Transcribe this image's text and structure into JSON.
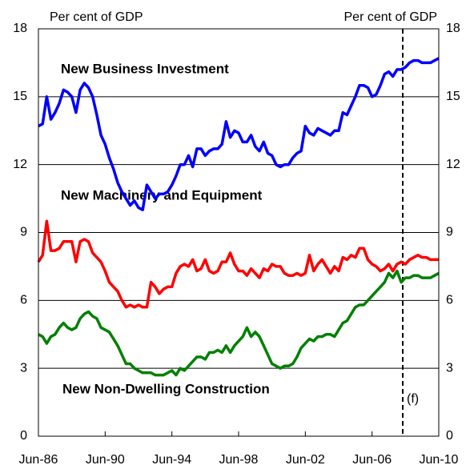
{
  "chart_data": {
    "type": "line",
    "y_label": "Per cent of GDP",
    "y2_label": "Per cent of GDP",
    "annotations": [
      "(f)"
    ],
    "categories": [
      "Jun-86",
      null,
      null,
      null,
      null,
      null,
      null,
      null,
      null,
      null,
      null,
      null,
      null,
      null,
      null,
      null,
      "Jun-90",
      null,
      null,
      null,
      null,
      null,
      null,
      null,
      null,
      null,
      null,
      null,
      null,
      null,
      null,
      null,
      "Jun-94",
      null,
      null,
      null,
      null,
      null,
      null,
      null,
      null,
      null,
      null,
      null,
      null,
      null,
      null,
      null,
      "Jun-98",
      null,
      null,
      null,
      null,
      null,
      null,
      null,
      null,
      null,
      null,
      null,
      null,
      null,
      null,
      null,
      "Jun-02",
      null,
      null,
      null,
      null,
      null,
      null,
      null,
      null,
      null,
      null,
      null,
      null,
      null,
      null,
      null,
      "Jun-06",
      null,
      null,
      null,
      null,
      null,
      null,
      null,
      null,
      null,
      null,
      null,
      null,
      null,
      null,
      null,
      "Jun-10"
    ],
    "series": [
      {
        "name": "New Business Investment",
        "color": "#0000ff",
        "values": [
          13.7,
          13.8,
          15.0,
          14.0,
          14.3,
          14.7,
          15.3,
          15.2,
          15.0,
          14.3,
          15.3,
          15.6,
          15.4,
          15.0,
          14.2,
          13.3,
          12.9,
          12.3,
          11.8,
          11.2,
          10.8,
          10.5,
          10.2,
          10.4,
          10.1,
          10.0,
          11.1,
          10.8,
          10.5,
          10.7,
          10.7,
          10.8,
          11.1,
          11.5,
          12.0,
          12.0,
          12.4,
          11.9,
          12.7,
          12.7,
          12.4,
          12.6,
          12.7,
          12.7,
          12.9,
          13.9,
          13.2,
          13.5,
          13.4,
          13.0,
          13.0,
          13.3,
          12.8,
          12.6,
          13.0,
          12.5,
          12.4,
          12.0,
          11.9,
          12.0,
          12.0,
          12.3,
          12.5,
          12.6,
          13.7,
          13.4,
          13.3,
          13.6,
          13.5,
          13.4,
          13.3,
          13.5,
          13.5,
          14.3,
          14.2,
          14.6,
          15.0,
          15.5,
          15.5,
          15.4,
          15.0,
          15.1,
          15.5,
          16.0,
          16.1,
          15.9,
          16.2,
          16.2,
          16.3,
          16.5,
          16.6,
          16.6,
          16.5,
          16.5,
          16.5,
          16.6,
          16.7
        ]
      },
      {
        "name": "New Machinery and Equipment",
        "color": "#ff0000",
        "values": [
          7.7,
          8.0,
          9.5,
          8.2,
          8.2,
          8.3,
          8.6,
          8.6,
          8.6,
          7.7,
          8.6,
          8.7,
          8.6,
          8.1,
          7.9,
          7.7,
          7.3,
          6.8,
          6.6,
          6.4,
          6.0,
          5.7,
          5.8,
          5.7,
          5.8,
          5.7,
          5.7,
          6.8,
          6.6,
          6.3,
          6.5,
          6.6,
          6.6,
          7.2,
          7.5,
          7.6,
          7.5,
          7.8,
          7.3,
          7.4,
          7.8,
          7.3,
          7.2,
          7.3,
          7.7,
          7.7,
          8.1,
          7.6,
          7.3,
          7.3,
          7.1,
          7.4,
          7.2,
          7.0,
          7.4,
          7.3,
          7.6,
          7.5,
          7.5,
          7.2,
          7.1,
          7.1,
          7.2,
          7.1,
          7.2,
          8.0,
          7.3,
          7.6,
          7.8,
          7.5,
          7.2,
          7.5,
          7.3,
          7.9,
          7.8,
          8.0,
          7.9,
          8.3,
          8.3,
          7.8,
          7.6,
          7.5,
          7.3,
          7.4,
          7.6,
          7.3,
          7.6,
          7.7,
          7.6,
          7.8,
          7.9,
          8.0,
          7.9,
          7.9,
          7.8,
          7.8,
          7.8
        ]
      },
      {
        "name": "New Non-Dwelling Construction",
        "color": "#008000",
        "values": [
          4.5,
          4.4,
          4.1,
          4.4,
          4.5,
          4.8,
          5.0,
          4.8,
          4.7,
          4.8,
          5.2,
          5.4,
          5.5,
          5.3,
          5.2,
          4.8,
          4.7,
          4.6,
          4.3,
          4.0,
          3.6,
          3.2,
          3.2,
          3.0,
          2.9,
          2.8,
          2.8,
          2.8,
          2.7,
          2.7,
          2.7,
          2.8,
          2.9,
          2.7,
          3.0,
          2.9,
          3.1,
          3.3,
          3.5,
          3.5,
          3.4,
          3.7,
          3.7,
          3.8,
          3.7,
          4.0,
          3.7,
          4.0,
          4.2,
          4.4,
          4.8,
          4.4,
          4.6,
          4.4,
          4.0,
          3.6,
          3.2,
          3.1,
          3.0,
          3.1,
          3.1,
          3.2,
          3.5,
          3.9,
          4.1,
          4.3,
          4.2,
          4.4,
          4.4,
          4.5,
          4.5,
          4.4,
          4.7,
          5.0,
          5.1,
          5.4,
          5.7,
          5.8,
          5.8,
          6.0,
          6.2,
          6.4,
          6.6,
          6.8,
          7.2,
          7.0,
          7.3,
          6.8,
          7.0,
          7.0,
          7.1,
          7.1,
          7.0,
          7.0,
          7.0,
          7.1,
          7.2
        ]
      }
    ],
    "ylim": [
      0,
      18
    ],
    "yticks": [
      0,
      3,
      6,
      9,
      12,
      15,
      18
    ],
    "y2lim": [
      0,
      18
    ],
    "y2ticks": [
      0,
      3,
      6,
      9,
      12,
      15,
      18
    ],
    "grid": true
  }
}
